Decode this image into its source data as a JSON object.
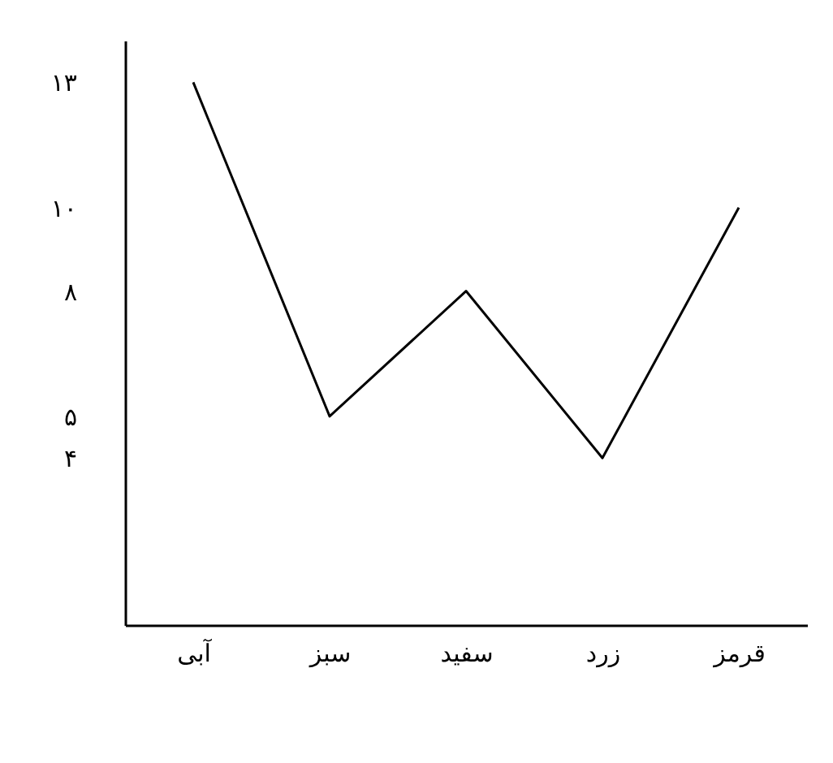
{
  "chart_data": {
    "type": "line",
    "categories": [
      "آبی",
      "سبز",
      "سفید",
      "زرد",
      "قرمز"
    ],
    "series": [
      {
        "color": "#000000",
        "values": [
          13,
          5,
          8,
          4,
          10
        ]
      }
    ],
    "ylim": [
      0,
      14
    ],
    "yticks": [
      {
        "value": 4,
        "label": "۴"
      },
      {
        "value": 5,
        "label": "۵"
      },
      {
        "value": 8,
        "label": "۸"
      },
      {
        "value": 10,
        "label": "۱۰"
      },
      {
        "value": 13,
        "label": "۱۳"
      }
    ],
    "grid": false,
    "legend": false,
    "marker": "none",
    "line_style": "solid"
  }
}
